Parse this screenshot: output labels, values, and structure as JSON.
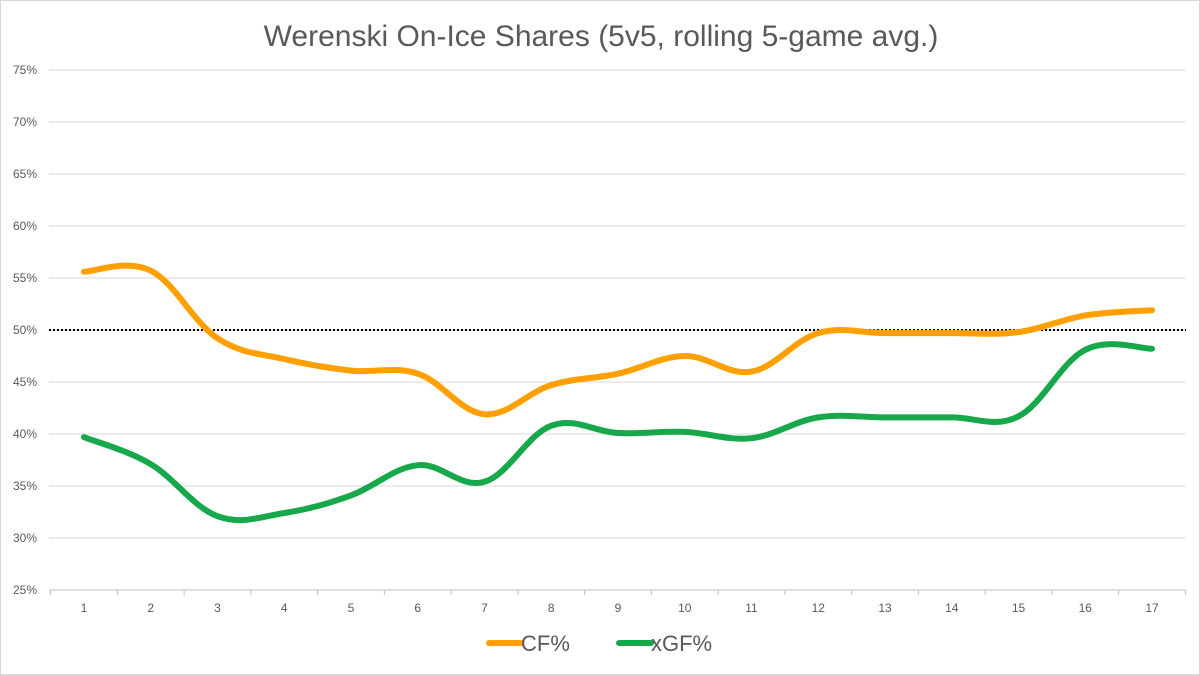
{
  "chart_data": {
    "type": "line",
    "title": "Werenski On-Ice Shares (5v5, rolling 5-game avg.)",
    "xlabel": "",
    "ylabel": "",
    "x": [
      1,
      2,
      3,
      4,
      5,
      6,
      7,
      8,
      9,
      10,
      11,
      12,
      13,
      14,
      15,
      16,
      17
    ],
    "x_tick_labels": [
      "1",
      "2",
      "3",
      "4",
      "5",
      "6",
      "7",
      "8",
      "9",
      "10",
      "11",
      "12",
      "13",
      "14",
      "15",
      "16",
      "17"
    ],
    "y_ticks": [
      25,
      30,
      35,
      40,
      45,
      50,
      55,
      60,
      65,
      70,
      75
    ],
    "y_tick_labels": [
      "25%",
      "30%",
      "35%",
      "40%",
      "45%",
      "50%",
      "55%",
      "60%",
      "65%",
      "70%",
      "75%"
    ],
    "ylim": [
      25,
      75
    ],
    "grid": true,
    "reference_line": {
      "value": 50,
      "style": "dotted",
      "color": "#000000"
    },
    "legend_position": "bottom",
    "series": [
      {
        "name": "CF%",
        "color": "#ffa000",
        "values": [
          55.6,
          55.7,
          49.2,
          47.2,
          46.1,
          45.8,
          41.9,
          44.7,
          45.8,
          47.5,
          46.0,
          49.7,
          49.7,
          49.7,
          49.8,
          51.4,
          51.9
        ]
      },
      {
        "name": "xGF%",
        "color": "#16a84a",
        "values": [
          39.7,
          37.1,
          32.1,
          32.4,
          34.1,
          37.0,
          35.4,
          40.8,
          40.1,
          40.2,
          39.6,
          41.6,
          41.6,
          41.6,
          41.7,
          48.1,
          48.2
        ]
      }
    ]
  }
}
